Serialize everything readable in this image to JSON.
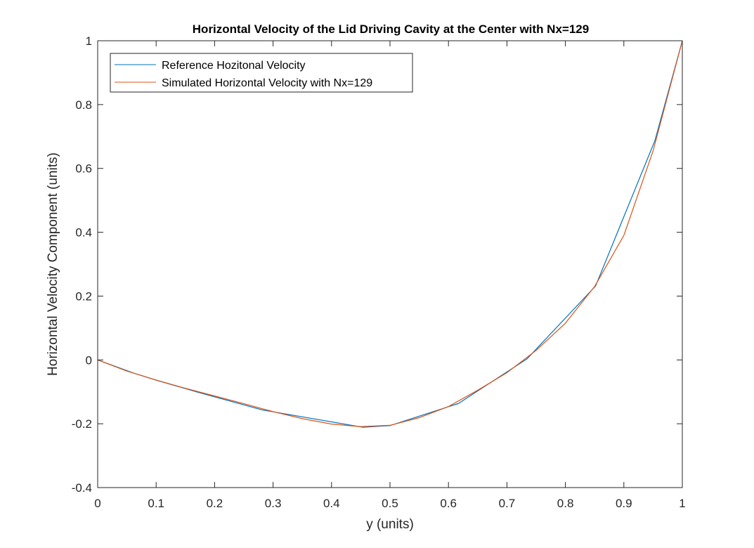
{
  "chart_data": {
    "type": "line",
    "title": "Horizontal Velocity of the Lid Driving Cavity at the Center with Nx=129",
    "xlabel": "y (units)",
    "ylabel": "Horizontal Velocity Component (units)",
    "xlim": [
      0,
      1
    ],
    "ylim": [
      -0.4,
      1
    ],
    "xticks": [
      0,
      0.1,
      0.2,
      0.3,
      0.4,
      0.5,
      0.6,
      0.7,
      0.8,
      0.9,
      1
    ],
    "xtick_labels": [
      "0",
      "0.1",
      "0.2",
      "0.3",
      "0.4",
      "0.5",
      "0.6",
      "0.7",
      "0.8",
      "0.9",
      "1"
    ],
    "yticks": [
      -0.4,
      -0.2,
      0,
      0.2,
      0.4,
      0.6,
      0.8,
      1
    ],
    "ytick_labels": [
      "-0.4",
      "-0.2",
      "0",
      "0.2",
      "0.4",
      "0.6",
      "0.8",
      "1"
    ],
    "grid": false,
    "legend_position": "top-left",
    "series": [
      {
        "name": "Reference Hozitonal Velocity",
        "color": "#0072BD",
        "x": [
          0,
          0.0625,
          0.1016,
          0.1719,
          0.2813,
          0.4531,
          0.5,
          0.6172,
          0.7344,
          0.8516,
          0.9531,
          1.0
        ],
        "y": [
          0,
          -0.0419,
          -0.0643,
          -0.1015,
          -0.1566,
          -0.2109,
          -0.2058,
          -0.1364,
          0.0033,
          0.2315,
          0.6872,
          1.0
        ]
      },
      {
        "name": "Simulated Horizontal Velocity with Nx=129",
        "color": "#D95319",
        "x": [
          0,
          0.05,
          0.1,
          0.15,
          0.2,
          0.25,
          0.3,
          0.35,
          0.4,
          0.45,
          0.5,
          0.55,
          0.6,
          0.65,
          0.7,
          0.75,
          0.8,
          0.85,
          0.9,
          0.95,
          1.0
        ],
        "y": [
          0,
          -0.035,
          -0.063,
          -0.089,
          -0.113,
          -0.137,
          -0.162,
          -0.184,
          -0.201,
          -0.209,
          -0.205,
          -0.181,
          -0.146,
          -0.095,
          -0.04,
          0.03,
          0.115,
          0.23,
          0.39,
          0.655,
          1.0
        ]
      }
    ]
  }
}
